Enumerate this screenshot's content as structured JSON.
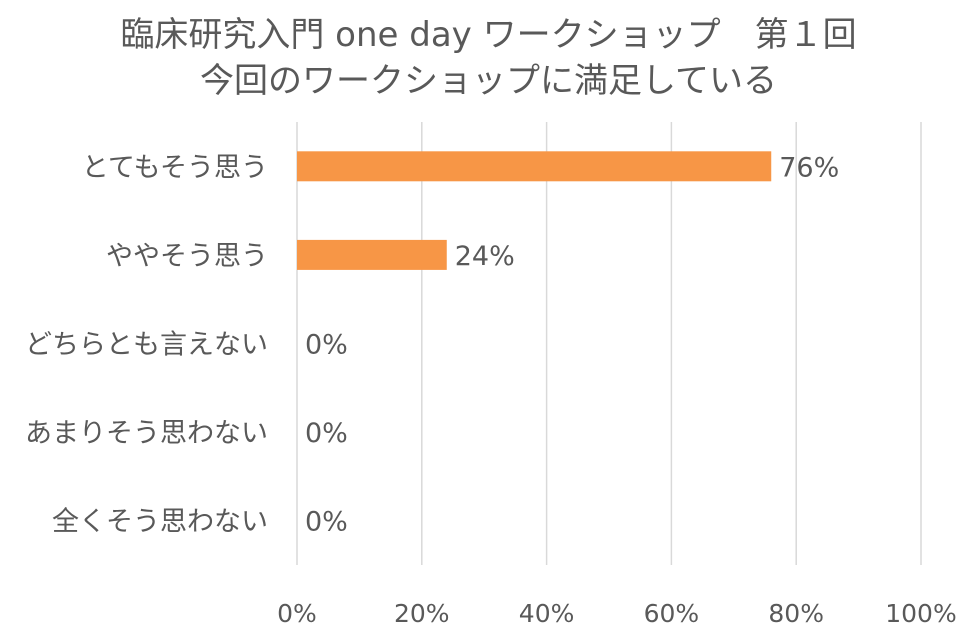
{
  "chart_data": {
    "type": "bar",
    "orientation": "horizontal",
    "title": [
      "臨床研究入門 one day ワークショップ　第１回",
      "今回のワークショップに満足している"
    ],
    "categories": [
      "とてもそう思う",
      "ややそう思う",
      "どちらとも言えない",
      "あまりそう思わない",
      "全くそう思わない"
    ],
    "values": [
      76,
      24,
      0,
      0,
      0
    ],
    "data_labels": [
      "76%",
      "24%",
      "0%",
      "0%",
      "0%"
    ],
    "xlim": [
      0,
      100
    ],
    "xticks": [
      0,
      20,
      40,
      60,
      80,
      100
    ],
    "xtick_labels": [
      "0%",
      "20%",
      "40%",
      "60%",
      "80%",
      "100%"
    ],
    "grid": true,
    "legend": "none",
    "bar_color": "#F79646",
    "gridline_color": "#D9D9D9",
    "text_color": "#595959"
  }
}
